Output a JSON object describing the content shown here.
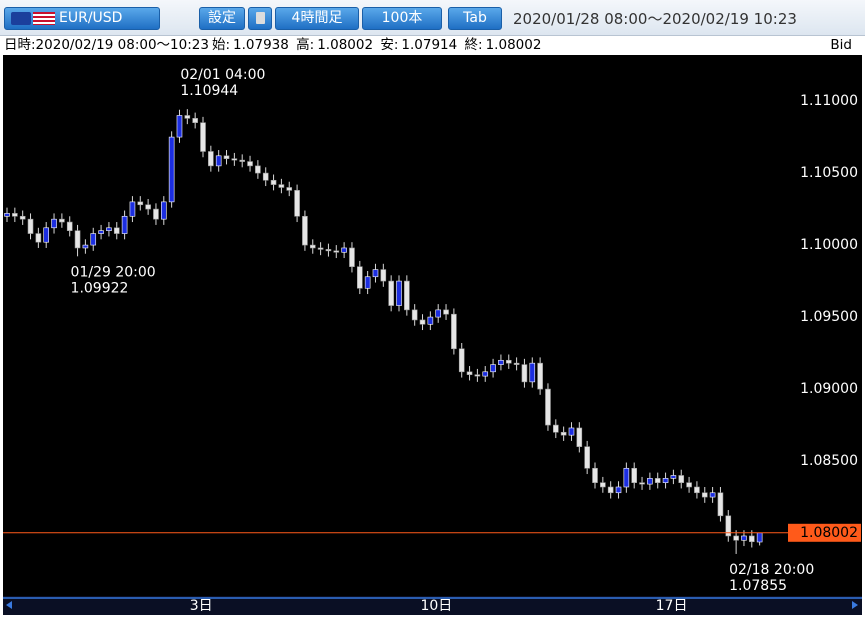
{
  "toolbar": {
    "symbol": "EUR/USD",
    "buttons": [
      "設定",
      "4時間足",
      "100本",
      "Tab"
    ],
    "range": "2020/01/28 08:00～2020/02/19 10:23"
  },
  "info": {
    "time": "日時:2020/02/19 08:00～10:23",
    "open_label": "始:",
    "high_label": "高:",
    "low_label": "安:",
    "close_label": "終:",
    "side": "Bid"
  },
  "chart_data": {
    "type": "candlestick",
    "categories": [
      null,
      null,
      null,
      null,
      null,
      null,
      null,
      null,
      null,
      null,
      null,
      null,
      null,
      null,
      null,
      null,
      null,
      null,
      null,
      null,
      null,
      null,
      null,
      null,
      "3日",
      null,
      null,
      null,
      null,
      null,
      null,
      null,
      null,
      null,
      null,
      null,
      null,
      null,
      null,
      null,
      null,
      null,
      null,
      null,
      null,
      null,
      null,
      null,
      null,
      null,
      null,
      null,
      null,
      null,
      "10日",
      null,
      null,
      null,
      null,
      null,
      null,
      null,
      null,
      null,
      null,
      null,
      null,
      null,
      null,
      null,
      null,
      null,
      null,
      null,
      null,
      null,
      null,
      null,
      null,
      null,
      null,
      null,
      null,
      null,
      "17日",
      null,
      null,
      null,
      null,
      null,
      null,
      null,
      null,
      null,
      null,
      null,
      null
    ],
    "open": [
      1.102,
      1.1022,
      1.102,
      1.1018,
      1.1008,
      1.1002,
      1.1012,
      1.1018,
      1.1016,
      1.101,
      1.0998,
      1.1,
      1.1008,
      1.101,
      1.1012,
      1.1008,
      1.102,
      1.103,
      1.1028,
      1.1025,
      1.1018,
      1.103,
      1.1075,
      1.109,
      1.1088,
      1.1085,
      1.1065,
      1.1055,
      1.1062,
      1.106,
      1.1059,
      1.1058,
      1.1055,
      1.105,
      1.1045,
      1.1042,
      1.104,
      1.1038,
      1.102,
      1.1,
      1.0998,
      1.0997,
      1.0996,
      1.0995,
      1.0998,
      1.0985,
      1.097,
      1.0978,
      1.0983,
      1.0975,
      1.0958,
      1.0975,
      1.0955,
      1.0948,
      1.0945,
      1.095,
      1.0955,
      1.0952,
      1.0928,
      1.0912,
      1.091,
      1.0909,
      1.0912,
      1.0917,
      1.092,
      1.0918,
      1.0917,
      1.0905,
      1.0918,
      1.09,
      1.0875,
      1.087,
      1.0868,
      1.0873,
      1.086,
      1.0845,
      1.0835,
      1.0832,
      1.0828,
      1.0832,
      1.0845,
      1.0835,
      1.0834,
      1.0838,
      1.0835,
      1.0838,
      1.084,
      1.0835,
      1.0832,
      1.0828,
      1.0825,
      1.0828,
      1.0812,
      1.0798,
      1.0795,
      1.0798,
      1.07938
    ],
    "high": [
      1.1026,
      1.1026,
      1.1024,
      1.1022,
      1.1012,
      1.1016,
      1.1022,
      1.1022,
      1.102,
      1.1014,
      1.1004,
      1.1012,
      1.1014,
      1.1016,
      1.1016,
      1.1024,
      1.1034,
      1.1034,
      1.1032,
      1.1029,
      1.1034,
      1.1079,
      1.1094,
      1.10944,
      1.1092,
      1.1089,
      1.1069,
      1.1066,
      1.1066,
      1.1064,
      1.1063,
      1.1062,
      1.1059,
      1.1054,
      1.1049,
      1.1046,
      1.1044,
      1.1042,
      1.1024,
      1.1004,
      1.1002,
      1.1001,
      1.1,
      1.1002,
      1.1002,
      1.0989,
      1.0982,
      1.0987,
      1.0987,
      1.0979,
      1.0979,
      1.0979,
      1.0959,
      1.0952,
      1.0954,
      1.0959,
      1.0959,
      1.0956,
      1.0932,
      1.0916,
      1.0914,
      1.0916,
      1.0921,
      1.0924,
      1.0924,
      1.0922,
      1.0921,
      1.0922,
      1.0922,
      1.0904,
      1.0879,
      1.0874,
      1.0877,
      1.0877,
      1.0864,
      1.0849,
      1.0839,
      1.0836,
      1.0836,
      1.0849,
      1.0849,
      1.0839,
      1.0842,
      1.0842,
      1.0842,
      1.0844,
      1.0844,
      1.0839,
      1.0836,
      1.0832,
      1.0832,
      1.0832,
      1.0816,
      1.0802,
      1.0802,
      1.0802,
      1.08002
    ],
    "low": [
      1.1016,
      1.1016,
      1.1014,
      1.1004,
      1.0998,
      1.0998,
      1.1008,
      1.1012,
      1.1006,
      1.09922,
      1.0994,
      1.0996,
      1.1004,
      1.1006,
      1.1004,
      1.1004,
      1.1016,
      1.1024,
      1.1021,
      1.1014,
      1.1014,
      1.1026,
      1.1071,
      1.1084,
      1.1081,
      1.1061,
      1.1051,
      1.1051,
      1.1056,
      1.1055,
      1.1054,
      1.1051,
      1.1046,
      1.1041,
      1.1038,
      1.1036,
      1.1034,
      1.1016,
      1.0996,
      1.0994,
      1.0993,
      1.0992,
      1.0991,
      1.0991,
      1.0981,
      1.0966,
      1.0966,
      1.0974,
      1.0971,
      1.0954,
      1.0954,
      1.0951,
      1.0944,
      1.0941,
      1.0941,
      1.0946,
      1.0948,
      1.0924,
      1.0908,
      1.0906,
      1.0905,
      1.0905,
      1.0908,
      1.0913,
      1.0914,
      1.0913,
      1.0901,
      1.0901,
      1.0896,
      1.0871,
      1.0866,
      1.0864,
      1.0864,
      1.0856,
      1.0841,
      1.0831,
      1.0828,
      1.0824,
      1.0824,
      1.0828,
      1.0831,
      1.083,
      1.083,
      1.0831,
      1.0831,
      1.0834,
      1.0831,
      1.0828,
      1.0824,
      1.0821,
      1.0821,
      1.0808,
      1.0794,
      1.07855,
      1.0791,
      1.079,
      1.07914
    ],
    "close": [
      1.1022,
      1.102,
      1.1018,
      1.1008,
      1.1002,
      1.1012,
      1.1018,
      1.1016,
      1.101,
      1.0998,
      1.1,
      1.1008,
      1.101,
      1.1012,
      1.1008,
      1.102,
      1.103,
      1.1028,
      1.1025,
      1.1018,
      1.103,
      1.1075,
      1.109,
      1.1088,
      1.1085,
      1.1065,
      1.1055,
      1.1062,
      1.106,
      1.1059,
      1.1058,
      1.1055,
      1.105,
      1.1045,
      1.1042,
      1.104,
      1.1038,
      1.102,
      1.1,
      1.0998,
      1.0997,
      1.0996,
      1.0995,
      1.0998,
      1.0985,
      1.097,
      1.0978,
      1.0983,
      1.0975,
      1.0958,
      1.0975,
      1.0955,
      1.0948,
      1.0945,
      1.095,
      1.0955,
      1.0952,
      1.0928,
      1.0912,
      1.091,
      1.0909,
      1.0912,
      1.0917,
      1.092,
      1.0918,
      1.0917,
      1.0905,
      1.0918,
      1.09,
      1.0875,
      1.087,
      1.0868,
      1.0873,
      1.086,
      1.0845,
      1.0835,
      1.0832,
      1.0828,
      1.0832,
      1.0845,
      1.0835,
      1.0834,
      1.0838,
      1.0835,
      1.0838,
      1.084,
      1.0835,
      1.0832,
      1.0828,
      1.0825,
      1.0828,
      1.0812,
      1.0798,
      1.0795,
      1.0798,
      1.0794,
      1.08002
    ],
    "up_color": "#1c2ee0",
    "down_color": "#e6e6e6",
    "last_line_color": "#ff5a1a",
    "ylim": [
      1.0757,
      1.1132
    ],
    "yticks": [
      {
        "value": 1.085,
        "label": "1.08500"
      },
      {
        "value": 1.09,
        "label": "1.09000"
      },
      {
        "value": 1.095,
        "label": "1.09500"
      },
      {
        "value": 1.1,
        "label": "1.10000"
      },
      {
        "value": 1.105,
        "label": "1.10500"
      },
      {
        "value": 1.11,
        "label": "1.11000"
      }
    ],
    "annotations": [
      {
        "time": "01/29 20:00",
        "price": 1.09922
      },
      {
        "time": "02/01 04:00",
        "price": 1.10944
      },
      {
        "time": "02/18 20:00",
        "price": 1.07855
      }
    ]
  }
}
